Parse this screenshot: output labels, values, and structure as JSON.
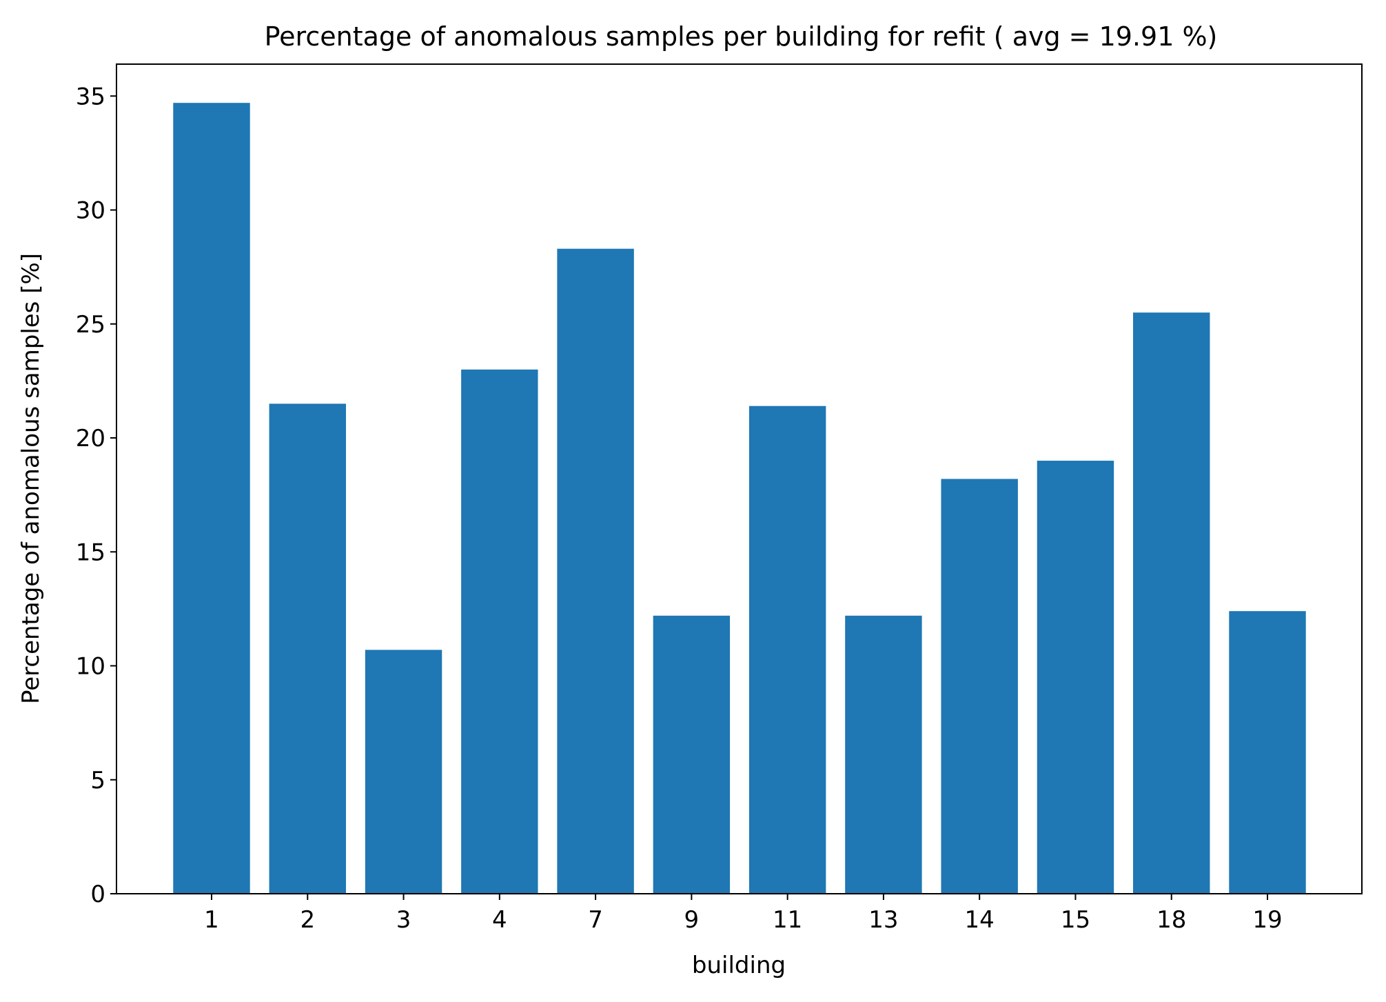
{
  "chart_data": {
    "type": "bar",
    "title": "Percentage of anomalous samples per building for refit ( avg = 19.91 %)",
    "xlabel": "building",
    "ylabel": "Percentage of anomalous samples [%]",
    "categories": [
      "1",
      "2",
      "3",
      "4",
      "7",
      "9",
      "11",
      "13",
      "14",
      "15",
      "18",
      "19"
    ],
    "values": [
      34.7,
      21.5,
      10.7,
      23.0,
      28.3,
      12.2,
      21.4,
      12.2,
      18.2,
      19.0,
      25.5,
      12.4
    ],
    "yticks": [
      "0",
      "5",
      "10",
      "15",
      "20",
      "25",
      "30",
      "35"
    ],
    "ylim": [
      0,
      36.4
    ],
    "grid": false,
    "bar_color": "#1f77b4"
  }
}
